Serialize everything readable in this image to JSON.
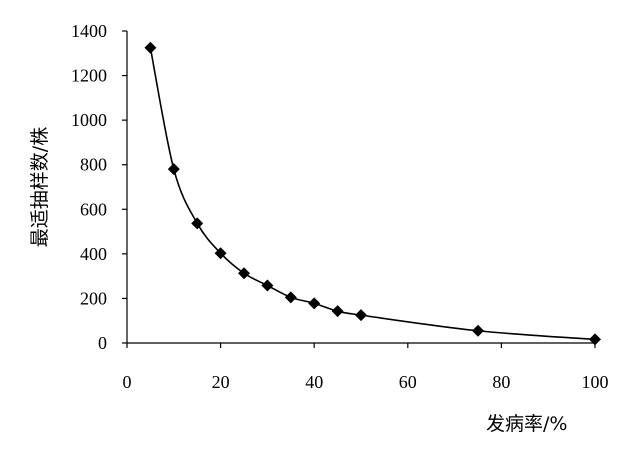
{
  "chart_data": {
    "type": "scatter",
    "title": "",
    "xlabel": "发病率/%",
    "ylabel": "最适抽样数/株",
    "xlim": [
      0,
      100
    ],
    "ylim": [
      0,
      1400
    ],
    "x_ticks": [
      0,
      20,
      40,
      60,
      80,
      100
    ],
    "y_ticks": [
      0,
      200,
      400,
      600,
      800,
      1000,
      1200,
      1400
    ],
    "grid": false,
    "legend": "none",
    "marker": "diamond",
    "smooth_line": true,
    "series": [
      {
        "points": [
          {
            "x": 5,
            "y": 1325
          },
          {
            "x": 10,
            "y": 780
          },
          {
            "x": 15,
            "y": 537
          },
          {
            "x": 20,
            "y": 403
          },
          {
            "x": 25,
            "y": 313
          },
          {
            "x": 30,
            "y": 258
          },
          {
            "x": 35,
            "y": 205
          },
          {
            "x": 40,
            "y": 178
          },
          {
            "x": 45,
            "y": 143
          },
          {
            "x": 50,
            "y": 125
          },
          {
            "x": 75,
            "y": 55
          },
          {
            "x": 100,
            "y": 16
          }
        ]
      }
    ]
  }
}
